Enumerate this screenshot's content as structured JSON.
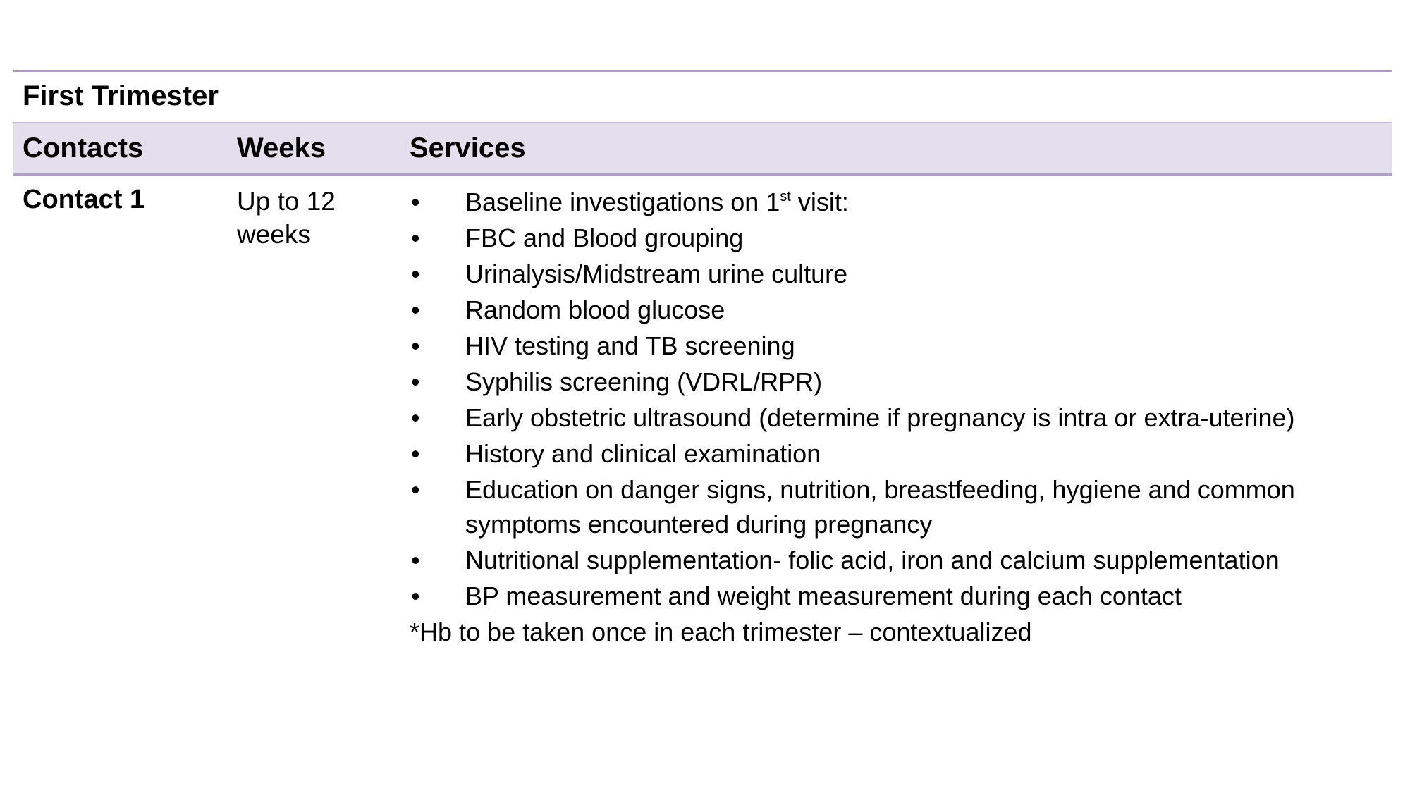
{
  "section_title": "First Trimester",
  "headers": {
    "contacts": "Contacts",
    "weeks": "Weeks",
    "services": "Services"
  },
  "row": {
    "contact": "Contact 1",
    "weeks": "Up to 12 weeks",
    "first_service": {
      "before": "Baseline investigations on 1",
      "sup": "st",
      "after": " visit:"
    },
    "services": [
      "FBC and Blood grouping",
      "Urinalysis/Midstream urine culture",
      "Random blood glucose",
      "HIV testing and TB screening",
      "Syphilis screening (VDRL/RPR)",
      "Early obstetric ultrasound (determine if pregnancy is intra or extra-uterine)",
      "History and clinical examination",
      "Education on danger signs, nutrition, breastfeeding, hygiene and common symptoms encountered during pregnancy",
      "Nutritional supplementation- folic acid, iron and calcium supplementation",
      "BP measurement and weight measurement during each contact"
    ],
    "note": "*Hb to be taken once in each trimester – contextualized"
  },
  "bullet": "•",
  "colors": {
    "header_band": "#e4dfec",
    "rule": "#b1a0c7"
  }
}
